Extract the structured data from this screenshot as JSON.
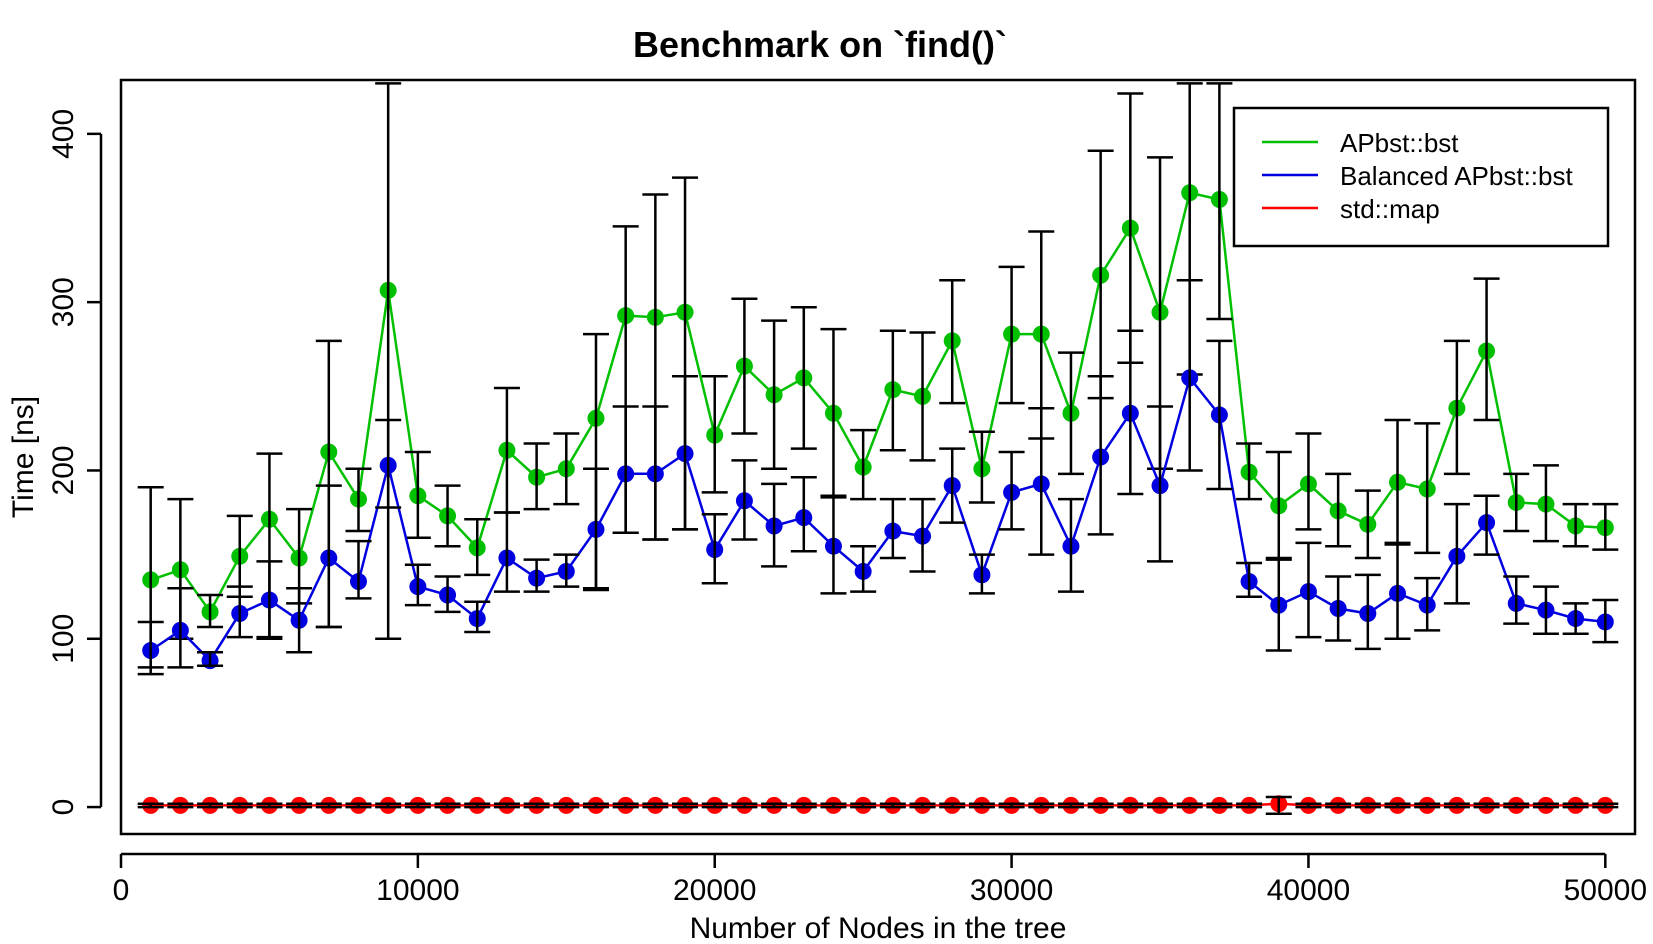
{
  "chart_data": {
    "type": "line",
    "title": "Benchmark on `find()`",
    "xlabel": "Number of Nodes in the tree",
    "ylabel": "Time [ns]",
    "xlim": [
      0,
      51000
    ],
    "ylim": [
      -16,
      432
    ],
    "xticks": [
      0,
      10000,
      20000,
      30000,
      40000,
      50000
    ],
    "xtick_labels": [
      "0",
      "10000",
      "20000",
      "30000",
      "40000",
      "50000"
    ],
    "yticks": [
      0,
      100,
      200,
      300,
      400
    ],
    "ytick_labels": [
      "0",
      "100",
      "200",
      "300",
      "400"
    ],
    "grid": false,
    "legend_position": "top-right",
    "x": [
      1000,
      2000,
      3000,
      4000,
      5000,
      6000,
      7000,
      8000,
      9000,
      10000,
      11000,
      12000,
      13000,
      14000,
      15000,
      16000,
      17000,
      18000,
      19000,
      20000,
      21000,
      22000,
      23000,
      24000,
      25000,
      26000,
      27000,
      28000,
      29000,
      30000,
      31000,
      32000,
      33000,
      34000,
      35000,
      36000,
      37000,
      38000,
      39000,
      40000,
      41000,
      42000,
      43000,
      44000,
      45000,
      46000,
      47000,
      48000,
      49000,
      50000
    ],
    "series": [
      {
        "name": "APbst::bst",
        "color": "#00c000",
        "values": [
          135,
          141,
          116,
          149,
          171,
          148,
          211,
          183,
          307,
          185,
          173,
          154,
          212,
          196,
          201,
          231,
          292,
          291,
          294,
          221,
          262,
          245,
          255,
          234,
          202,
          248,
          244,
          277,
          201,
          281,
          281,
          234,
          316,
          344,
          294,
          365,
          361,
          199,
          179,
          192,
          176,
          168,
          193,
          189,
          237,
          271,
          181,
          180,
          167,
          166
        ],
        "err_low": [
          83,
          100,
          107,
          125,
          100,
          121,
          107,
          164,
          100,
          160,
          155,
          138,
          175,
          177,
          180,
          129,
          163,
          159,
          165,
          187,
          222,
          201,
          213,
          185,
          183,
          212,
          206,
          240,
          181,
          240,
          219,
          198,
          243,
          264,
          201,
          257,
          290,
          183,
          147,
          165,
          155,
          148,
          156,
          151,
          198,
          230,
          164,
          158,
          155,
          153
        ],
        "err_high": [
          190,
          183,
          126,
          173,
          210,
          177,
          277,
          201,
          430,
          211,
          191,
          171,
          249,
          216,
          222,
          281,
          345,
          364,
          374,
          256,
          302,
          289,
          297,
          284,
          224,
          283,
          282,
          313,
          223,
          321,
          342,
          270,
          390,
          424,
          386,
          430,
          430,
          216,
          211,
          222,
          198,
          188,
          230,
          228,
          277,
          314,
          198,
          203,
          180,
          180
        ]
      },
      {
        "name": "Balanced APbst::bst",
        "color": "#0000e0",
        "values": [
          93,
          105,
          87,
          115,
          123,
          111,
          148,
          134,
          203,
          131,
          126,
          112,
          148,
          136,
          140,
          165,
          198,
          198,
          210,
          153,
          182,
          167,
          172,
          155,
          140,
          164,
          161,
          191,
          138,
          187,
          192,
          155,
          208,
          234,
          191,
          255,
          233,
          134,
          120,
          128,
          118,
          115,
          127,
          120,
          149,
          169,
          121,
          117,
          112,
          110
        ],
        "err_low": [
          79,
          83,
          84,
          101,
          101,
          92,
          107,
          124,
          178,
          120,
          116,
          104,
          128,
          128,
          131,
          130,
          163,
          159,
          165,
          133,
          159,
          143,
          152,
          127,
          128,
          148,
          140,
          169,
          127,
          165,
          150,
          128,
          162,
          186,
          146,
          200,
          189,
          125,
          93,
          101,
          99,
          94,
          100,
          105,
          121,
          150,
          109,
          103,
          103,
          98
        ],
        "err_high": [
          110,
          130,
          92,
          131,
          146,
          130,
          191,
          158,
          230,
          144,
          137,
          122,
          175,
          147,
          150,
          201,
          238,
          238,
          256,
          174,
          206,
          192,
          196,
          184,
          155,
          183,
          183,
          213,
          150,
          211,
          237,
          183,
          256,
          283,
          238,
          313,
          277,
          145,
          148,
          157,
          137,
          138,
          157,
          136,
          180,
          185,
          137,
          131,
          121,
          123
        ]
      },
      {
        "name": "std::map",
        "color": "#ff0000",
        "values": [
          1,
          1,
          1,
          1,
          1,
          1,
          1,
          1,
          1,
          1,
          1,
          1,
          1,
          1,
          1,
          1,
          1,
          1,
          1,
          1,
          1,
          1,
          1,
          1,
          1,
          1,
          1,
          1,
          1,
          1,
          1,
          1,
          1,
          1,
          1,
          1,
          1,
          1,
          2,
          1,
          1,
          1,
          1,
          1,
          1,
          1,
          1,
          1,
          1,
          1
        ],
        "err_low": [
          0,
          0,
          0,
          0,
          0,
          0,
          0,
          0,
          0,
          0,
          0,
          0,
          0,
          0,
          0,
          0,
          0,
          0,
          0,
          0,
          0,
          0,
          0,
          0,
          0,
          0,
          0,
          0,
          0,
          0,
          0,
          0,
          0,
          0,
          0,
          0,
          0,
          0,
          -4,
          0,
          0,
          0,
          0,
          0,
          0,
          0,
          0,
          0,
          0,
          0
        ],
        "err_high": [
          2,
          2,
          2,
          2,
          2,
          2,
          2,
          2,
          2,
          2,
          2,
          2,
          2,
          2,
          2,
          2,
          2,
          2,
          2,
          2,
          2,
          2,
          2,
          2,
          2,
          2,
          2,
          2,
          2,
          2,
          2,
          2,
          2,
          2,
          2,
          2,
          2,
          2,
          6,
          2,
          2,
          2,
          2,
          2,
          2,
          2,
          2,
          2,
          2,
          2
        ]
      }
    ]
  }
}
